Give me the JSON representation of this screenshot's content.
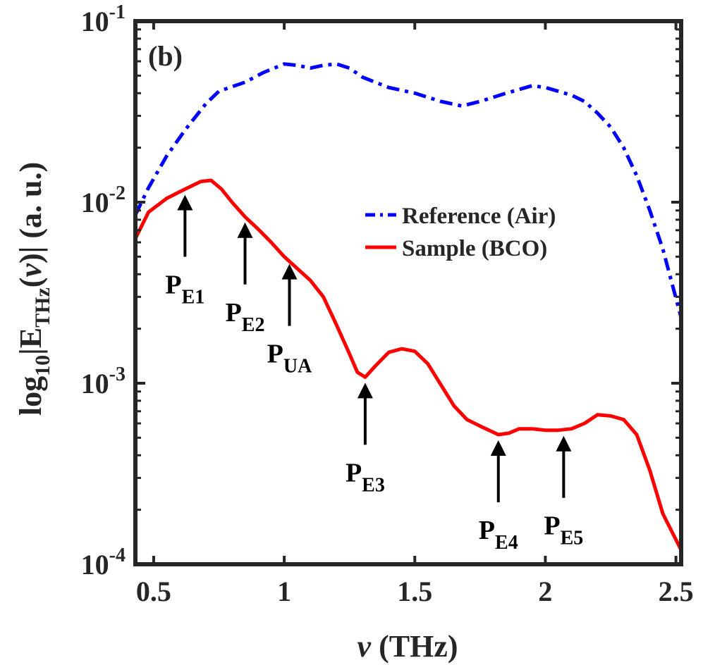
{
  "chart_data": {
    "type": "line",
    "panel_label": "(b)",
    "xlabel": {
      "symbol": "ν",
      "unit": "(THz)"
    },
    "ylabel": {
      "prefix": "log",
      "base": "10",
      "bar": "|E",
      "sub": "THz",
      "open": "(",
      "var": "ν",
      "close": ")|",
      "unit": "(a. u.)"
    },
    "xlim": [
      0.43,
      2.52
    ],
    "ylim_log10": [
      -4,
      -1
    ],
    "yscale": "log",
    "x_ticks": [
      {
        "value": 0.5,
        "label": "0.5"
      },
      {
        "value": 1.0,
        "label": "1"
      },
      {
        "value": 1.5,
        "label": "1.5"
      },
      {
        "value": 2.0,
        "label": "2"
      },
      {
        "value": 2.5,
        "label": "2.5"
      }
    ],
    "y_ticks": [
      {
        "exp": -1,
        "base": "10",
        "sup": "-1"
      },
      {
        "exp": -2,
        "base": "10",
        "sup": "-2"
      },
      {
        "exp": -3,
        "base": "10",
        "sup": "-3"
      },
      {
        "exp": -4,
        "base": "10",
        "sup": "-4"
      }
    ],
    "series": [
      {
        "name": "Reference (Air)",
        "color": "#0000ff",
        "style": "dash-dot",
        "x": [
          0.43,
          0.48,
          0.55,
          0.62,
          0.7,
          0.75,
          0.85,
          0.92,
          1.0,
          1.05,
          1.1,
          1.15,
          1.2,
          1.25,
          1.3,
          1.4,
          1.5,
          1.6,
          1.68,
          1.75,
          1.85,
          1.95,
          2.0,
          2.1,
          2.15,
          2.2,
          2.25,
          2.3,
          2.35,
          2.4,
          2.45,
          2.52
        ],
        "y": [
          0.0085,
          0.012,
          0.018,
          0.025,
          0.035,
          0.041,
          0.046,
          0.052,
          0.058,
          0.057,
          0.055,
          0.057,
          0.058,
          0.055,
          0.049,
          0.043,
          0.04,
          0.036,
          0.034,
          0.036,
          0.04,
          0.044,
          0.043,
          0.039,
          0.036,
          0.031,
          0.026,
          0.02,
          0.014,
          0.009,
          0.0055,
          0.0023
        ]
      },
      {
        "name": "Sample (BCO)",
        "color": "#ff0000",
        "style": "solid",
        "x": [
          0.43,
          0.48,
          0.55,
          0.62,
          0.68,
          0.72,
          0.76,
          0.8,
          0.85,
          0.9,
          0.95,
          1.0,
          1.05,
          1.1,
          1.15,
          1.2,
          1.25,
          1.28,
          1.31,
          1.35,
          1.4,
          1.45,
          1.5,
          1.55,
          1.6,
          1.65,
          1.7,
          1.75,
          1.82,
          1.86,
          1.9,
          1.95,
          2.0,
          2.05,
          2.1,
          2.15,
          2.2,
          2.25,
          2.3,
          2.35,
          2.4,
          2.45,
          2.52
        ],
        "y": [
          0.0063,
          0.0088,
          0.0105,
          0.0118,
          0.013,
          0.0132,
          0.0118,
          0.01,
          0.0083,
          0.0071,
          0.006,
          0.005,
          0.0043,
          0.0037,
          0.003,
          0.0021,
          0.00145,
          0.00115,
          0.00108,
          0.00125,
          0.00148,
          0.00155,
          0.0015,
          0.00128,
          0.00098,
          0.00075,
          0.00063,
          0.00058,
          0.00052,
          0.00053,
          0.00056,
          0.00056,
          0.00055,
          0.00055,
          0.00056,
          0.0006,
          0.00067,
          0.00066,
          0.00063,
          0.00052,
          0.00033,
          0.00019,
          0.00012
        ]
      }
    ],
    "legend": {
      "position": "middle-right"
    },
    "annotations": [
      {
        "label": "P",
        "sub": "E1",
        "x": 0.62,
        "y": 0.0118
      },
      {
        "label": "P",
        "sub": "E2",
        "x": 0.85,
        "y": 0.0083
      },
      {
        "label": "P",
        "sub": "UA",
        "x": 1.02,
        "y": 0.0049
      },
      {
        "label": "P",
        "sub": "E3",
        "x": 1.31,
        "y": 0.00108
      },
      {
        "label": "P",
        "sub": "E4",
        "x": 1.82,
        "y": 0.00052
      },
      {
        "label": "P",
        "sub": "E5",
        "x": 2.07,
        "y": 0.00055
      }
    ]
  }
}
